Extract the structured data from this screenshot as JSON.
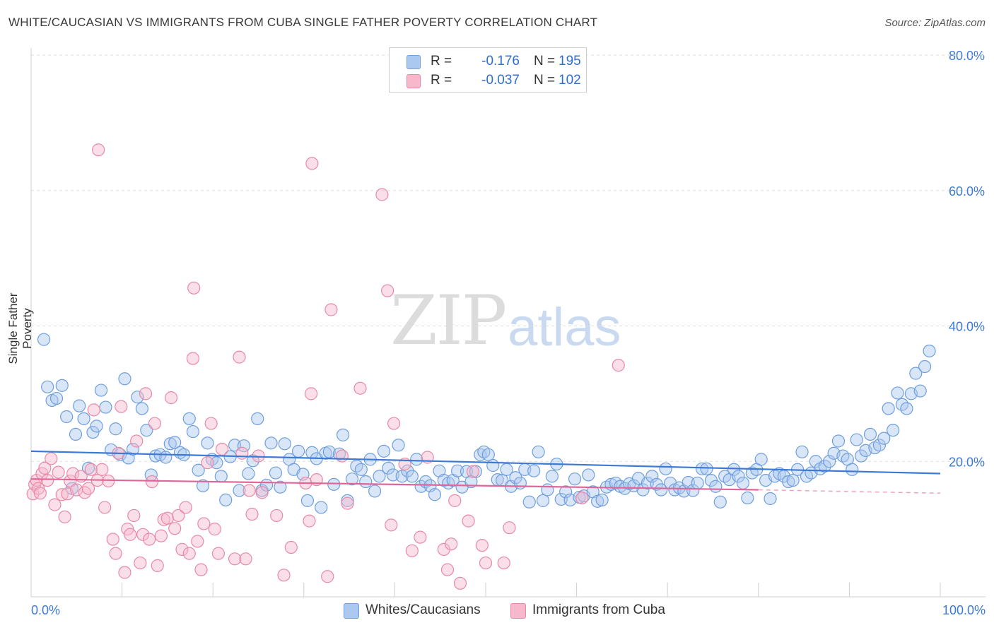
{
  "header": {
    "title": "WHITE/CAUCASIAN VS IMMIGRANTS FROM CUBA SINGLE FATHER POVERTY CORRELATION CHART",
    "source": "Source: ZipAtlas.com"
  },
  "watermark": {
    "zip": "ZIP",
    "atlas": "atlas"
  },
  "legend": {
    "rows": [
      {
        "r_label": "R =",
        "r_value": "-0.176",
        "n_label": "N =",
        "n_value": "195",
        "color": "#aac8f0",
        "stroke": "#6f9fdd"
      },
      {
        "r_label": "R =",
        "r_value": "-0.037",
        "n_label": "N =",
        "n_value": "102",
        "color": "#f7b8cb",
        "stroke": "#e88aa6"
      }
    ]
  },
  "bottom_legend": {
    "items": [
      {
        "label": "Whites/Caucasians",
        "color": "#aac8f0",
        "stroke": "#6f9fdd"
      },
      {
        "label": "Immigrants from Cuba",
        "color": "#f7b8cb",
        "stroke": "#e88aa6"
      }
    ]
  },
  "chart_data": {
    "type": "scatter",
    "ylabel": "Single Father Poverty",
    "xlim": [
      0,
      100
    ],
    "ylim": [
      0,
      80
    ],
    "x_tick_labels": [
      "0.0%",
      "100.0%"
    ],
    "y_ticks": [
      20,
      40,
      60,
      80
    ],
    "y_tick_labels": [
      "20.0%",
      "40.0%",
      "60.0%",
      "80.0%"
    ],
    "grid": true,
    "colors": {
      "blue": "#3d7ad6",
      "pink": "#e0669a",
      "grid": "#dddddd",
      "axis_text": "#3d7ad6"
    },
    "series": [
      {
        "name": "Whites/Caucasians",
        "color": "#aac8f0",
        "stroke": "#6f9fdd",
        "trend": {
          "x0": 0,
          "y0": 21.5,
          "x1": 100,
          "y1": 18.2
        },
        "points": [
          [
            1.4,
            38
          ],
          [
            1.8,
            31
          ],
          [
            2.3,
            29
          ],
          [
            2.8,
            29.3
          ],
          [
            3.4,
            31.2
          ],
          [
            3.9,
            26.6
          ],
          [
            4.5,
            16
          ],
          [
            4.9,
            24
          ],
          [
            5.3,
            28.2
          ],
          [
            5.8,
            26.3
          ],
          [
            6.3,
            19
          ],
          [
            6.8,
            24.3
          ],
          [
            7.2,
            25.2
          ],
          [
            7.7,
            30.5
          ],
          [
            8.2,
            28
          ],
          [
            8.8,
            21.7
          ],
          [
            9.3,
            24.8
          ],
          [
            9.8,
            21
          ],
          [
            10.3,
            32.2
          ],
          [
            10.7,
            20.5
          ],
          [
            11.2,
            21.8
          ],
          [
            11.7,
            29.5
          ],
          [
            12.2,
            27.8
          ],
          [
            12.7,
            24.6
          ],
          [
            13.2,
            18
          ],
          [
            13.7,
            20.8
          ],
          [
            14.2,
            21
          ],
          [
            14.8,
            20.6
          ],
          [
            15.3,
            22.6
          ],
          [
            15.8,
            22.8
          ],
          [
            16.4,
            21.3
          ],
          [
            16.8,
            21
          ],
          [
            17.4,
            26.3
          ],
          [
            17.8,
            24.4
          ],
          [
            18.4,
            18.7
          ],
          [
            18.9,
            16.4
          ],
          [
            19.4,
            22.7
          ],
          [
            19.9,
            20.3
          ],
          [
            20.4,
            19.8
          ],
          [
            20.9,
            17.8
          ],
          [
            21.4,
            14.3
          ],
          [
            21.9,
            20.7
          ],
          [
            22.4,
            22.4
          ],
          [
            22.9,
            15.7
          ],
          [
            23.4,
            22.3
          ],
          [
            23.9,
            18.2
          ],
          [
            24.4,
            20.1
          ],
          [
            24.9,
            26.3
          ],
          [
            25.4,
            15.7
          ],
          [
            25.9,
            16.5
          ],
          [
            26.4,
            22.7
          ],
          [
            26.9,
            18.3
          ],
          [
            27.4,
            16.2
          ],
          [
            27.9,
            22.6
          ],
          [
            28.4,
            20.3
          ],
          [
            28.9,
            18.8
          ],
          [
            29.4,
            21.5
          ],
          [
            29.9,
            18.1
          ],
          [
            30.4,
            14.2
          ],
          [
            30.9,
            21.3
          ],
          [
            31.4,
            20.4
          ],
          [
            31.9,
            13.2
          ],
          [
            32.4,
            21.2
          ],
          [
            32.8,
            21.4
          ],
          [
            33.3,
            16.6
          ],
          [
            33.9,
            21.1
          ],
          [
            34.3,
            23.9
          ],
          [
            34.8,
            14.2
          ],
          [
            35.3,
            17.4
          ],
          [
            35.8,
            19.3
          ],
          [
            36.3,
            18.8
          ],
          [
            36.8,
            17
          ],
          [
            37.3,
            20.3
          ],
          [
            37.8,
            15.6
          ],
          [
            38.3,
            17.8
          ],
          [
            38.8,
            21.5
          ],
          [
            39.3,
            19
          ],
          [
            39.8,
            18
          ],
          [
            40.4,
            22.4
          ],
          [
            40.8,
            17.8
          ],
          [
            41.4,
            18.6
          ],
          [
            41.9,
            17.8
          ],
          [
            42.4,
            20.3
          ],
          [
            42.9,
            16.3
          ],
          [
            43.4,
            17
          ],
          [
            43.9,
            16.4
          ],
          [
            44.4,
            15.1
          ],
          [
            44.9,
            18.6
          ],
          [
            45.4,
            17.2
          ],
          [
            45.9,
            16.8
          ],
          [
            46.4,
            17.2
          ],
          [
            46.9,
            18.6
          ],
          [
            47.4,
            16.2
          ],
          [
            47.9,
            18.5
          ],
          [
            48.4,
            17
          ],
          [
            48.9,
            18.5
          ],
          [
            49.4,
            21
          ],
          [
            49.8,
            21.4
          ],
          [
            50.3,
            21
          ],
          [
            50.8,
            19.4
          ],
          [
            51.3,
            17.3
          ],
          [
            51.8,
            17.2
          ],
          [
            52.3,
            18.8
          ],
          [
            52.8,
            16.3
          ],
          [
            53.3,
            17.6
          ],
          [
            53.8,
            16.8
          ],
          [
            54.3,
            18.8
          ],
          [
            54.8,
            14
          ],
          [
            55.3,
            18.6
          ],
          [
            55.8,
            21.4
          ],
          [
            56.3,
            14.2
          ],
          [
            56.8,
            15.8
          ],
          [
            57.3,
            17.8
          ],
          [
            57.8,
            19.6
          ],
          [
            58.3,
            14.4
          ],
          [
            58.8,
            15.5
          ],
          [
            59.3,
            14.3
          ],
          [
            59.8,
            17.4
          ],
          [
            60.3,
            14.7
          ],
          [
            60.8,
            14.9
          ],
          [
            61.3,
            18
          ],
          [
            61.8,
            15.5
          ],
          [
            62.3,
            14.1
          ],
          [
            62.8,
            14.3
          ],
          [
            63.3,
            16.2
          ],
          [
            63.8,
            16.6
          ],
          [
            64.3,
            16.8
          ],
          [
            64.8,
            16.3
          ],
          [
            65.3,
            16
          ],
          [
            65.8,
            16.7
          ],
          [
            66.3,
            16.4
          ],
          [
            66.8,
            17.5
          ],
          [
            67.3,
            15.8
          ],
          [
            67.8,
            16.8
          ],
          [
            68.3,
            17.8
          ],
          [
            68.8,
            16.6
          ],
          [
            69.3,
            15.8
          ],
          [
            69.8,
            18.9
          ],
          [
            70.3,
            16.8
          ],
          [
            70.8,
            15.8
          ],
          [
            71.3,
            16.1
          ],
          [
            71.8,
            15.6
          ],
          [
            72.3,
            16.9
          ],
          [
            72.8,
            15.7
          ],
          [
            73.3,
            16.8
          ],
          [
            73.8,
            18.9
          ],
          [
            74.3,
            18.9
          ],
          [
            74.8,
            17.2
          ],
          [
            75.3,
            16.3
          ],
          [
            75.8,
            14
          ],
          [
            76.3,
            17.8
          ],
          [
            76.8,
            17.3
          ],
          [
            77.3,
            18.8
          ],
          [
            77.8,
            17.8
          ],
          [
            78.3,
            16.8
          ],
          [
            78.8,
            14.6
          ],
          [
            79.3,
            18.3
          ],
          [
            79.8,
            18.8
          ],
          [
            80.3,
            20.3
          ],
          [
            80.8,
            17.2
          ],
          [
            81.3,
            14.5
          ],
          [
            81.8,
            17.8
          ],
          [
            82.3,
            18.2
          ],
          [
            82.8,
            17.8
          ],
          [
            83.3,
            17
          ],
          [
            83.8,
            17.2
          ],
          [
            84.3,
            18.8
          ],
          [
            84.8,
            21.4
          ],
          [
            85.3,
            17.8
          ],
          [
            85.8,
            18.3
          ],
          [
            86.3,
            20
          ],
          [
            86.8,
            18.9
          ],
          [
            87.3,
            19.3
          ],
          [
            87.8,
            20
          ],
          [
            88.3,
            21.2
          ],
          [
            88.8,
            23
          ],
          [
            89.3,
            20.8
          ],
          [
            89.8,
            20.3
          ],
          [
            90.3,
            18.8
          ],
          [
            90.8,
            23.2
          ],
          [
            91.3,
            20.8
          ],
          [
            91.8,
            21.6
          ],
          [
            92.3,
            24
          ],
          [
            92.8,
            22
          ],
          [
            93.3,
            22.4
          ],
          [
            93.8,
            23.4
          ],
          [
            94.3,
            27.8
          ],
          [
            94.8,
            24.6
          ],
          [
            95.3,
            30.1
          ],
          [
            95.8,
            28.4
          ],
          [
            96.3,
            27.8
          ],
          [
            96.8,
            30
          ],
          [
            97.3,
            33
          ],
          [
            97.8,
            30.4
          ],
          [
            98.3,
            34
          ],
          [
            98.8,
            36.3
          ]
        ]
      },
      {
        "name": "Immigrants from Cuba",
        "color": "#f7b8cb",
        "stroke": "#e88aa6",
        "trend": {
          "x0": 0,
          "y0": 17.4,
          "x1": 80,
          "y1": 15.8,
          "dash_to_x": 100,
          "dash_to_y": 15.3
        },
        "points": [
          [
            0.2,
            15.2
          ],
          [
            0.4,
            16.6
          ],
          [
            0.6,
            17.2
          ],
          [
            0.8,
            16
          ],
          [
            1.0,
            15.3
          ],
          [
            1.2,
            18.2
          ],
          [
            1.5,
            19
          ],
          [
            1.8,
            17.2
          ],
          [
            2.2,
            20.4
          ],
          [
            2.6,
            13.6
          ],
          [
            3.0,
            18.4
          ],
          [
            3.4,
            15.1
          ],
          [
            3.7,
            11.8
          ],
          [
            4.0,
            15.2
          ],
          [
            4.3,
            17.1
          ],
          [
            4.6,
            18.2
          ],
          [
            5.0,
            15.8
          ],
          [
            5.5,
            17.8
          ],
          [
            5.9,
            15.4
          ],
          [
            6.3,
            16
          ],
          [
            6.6,
            18.8
          ],
          [
            6.9,
            27.6
          ],
          [
            7.3,
            17.2
          ],
          [
            7.4,
            66
          ],
          [
            7.8,
            18.8
          ],
          [
            8.1,
            13.2
          ],
          [
            8.5,
            17.1
          ],
          [
            9.0,
            8.5
          ],
          [
            9.3,
            6.4
          ],
          [
            9.6,
            21.2
          ],
          [
            9.9,
            28.1
          ],
          [
            10.3,
            3.6
          ],
          [
            10.6,
            10
          ],
          [
            10.9,
            9.2
          ],
          [
            11.3,
            12
          ],
          [
            11.6,
            23
          ],
          [
            12.0,
            5
          ],
          [
            12.3,
            9.2
          ],
          [
            12.6,
            30
          ],
          [
            13.0,
            8.5
          ],
          [
            13.3,
            17
          ],
          [
            13.6,
            25.6
          ],
          [
            13.9,
            4.6
          ],
          [
            14.3,
            9
          ],
          [
            14.6,
            11.4
          ],
          [
            15.0,
            11.6
          ],
          [
            15.4,
            29.4
          ],
          [
            15.8,
            10.1
          ],
          [
            16.2,
            12
          ],
          [
            16.6,
            7
          ],
          [
            17.0,
            13.2
          ],
          [
            17.4,
            6.4
          ],
          [
            17.8,
            35.2
          ],
          [
            17.9,
            45.6
          ],
          [
            18.3,
            8.2
          ],
          [
            18.7,
            4
          ],
          [
            19.0,
            10.8
          ],
          [
            19.4,
            19.8
          ],
          [
            19.8,
            25.6
          ],
          [
            20.2,
            10
          ],
          [
            20.6,
            6.4
          ],
          [
            21.0,
            21.8
          ],
          [
            22.4,
            5.6
          ],
          [
            22.9,
            35.4
          ],
          [
            23.2,
            21.2
          ],
          [
            23.6,
            5.6
          ],
          [
            24.0,
            15.7
          ],
          [
            24.3,
            12.2
          ],
          [
            25.0,
            20.8
          ],
          [
            25.4,
            15.4
          ],
          [
            27.0,
            12
          ],
          [
            27.8,
            3.2
          ],
          [
            28.6,
            7.3
          ],
          [
            30.2,
            16.8
          ],
          [
            30.6,
            11.2
          ],
          [
            30.8,
            30
          ],
          [
            30.9,
            64
          ],
          [
            31.4,
            17.3
          ],
          [
            32.6,
            3
          ],
          [
            33.0,
            42.4
          ],
          [
            34.2,
            20.8
          ],
          [
            34.8,
            13.8
          ],
          [
            36.2,
            30.8
          ],
          [
            38.6,
            59.4
          ],
          [
            39.2,
            45.2
          ],
          [
            39.6,
            10.6
          ],
          [
            39.9,
            25.6
          ],
          [
            41.1,
            19.6
          ],
          [
            41.9,
            6.8
          ],
          [
            42.8,
            8.8
          ],
          [
            43.6,
            20.6
          ],
          [
            45.4,
            7
          ],
          [
            45.8,
            4
          ],
          [
            46.2,
            7.8
          ],
          [
            46.6,
            14.2
          ],
          [
            47.2,
            2
          ],
          [
            48.1,
            11.2
          ],
          [
            48.6,
            18.5
          ],
          [
            49.6,
            7.6
          ],
          [
            50.0,
            5
          ],
          [
            52.0,
            5
          ],
          [
            52.6,
            10.2
          ],
          [
            60.6,
            14.6
          ],
          [
            64.6,
            34.2
          ]
        ]
      }
    ]
  }
}
